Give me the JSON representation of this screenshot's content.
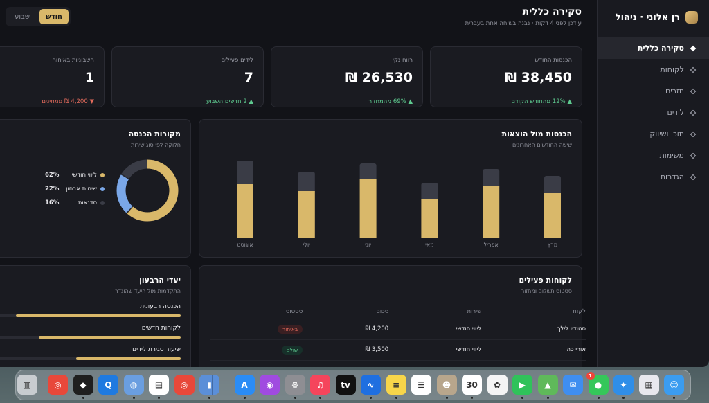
{
  "sidebar": {
    "brand": "רן אלוני · ניהול",
    "items": [
      {
        "label": "סקירה כללית",
        "active": true
      },
      {
        "label": "לקוחות"
      },
      {
        "label": "תזרים"
      },
      {
        "label": "לידים"
      },
      {
        "label": "תוכן ושיווק"
      },
      {
        "label": "משימות"
      },
      {
        "label": "הגדרות"
      }
    ]
  },
  "header": {
    "title": "סקירה כללית",
    "subtitle": "עודכן לפני 4 דקות · נבנה בשיחה אחת בעברית",
    "toggle": [
      "שבוע",
      "חודש"
    ],
    "toggle_active": "חודש"
  },
  "kpis": [
    {
      "label": "הכנסות החודש",
      "value": "38,450 ₪",
      "delta": "▲ 12% מהחודש הקודם",
      "trend": "up"
    },
    {
      "label": "רווח נקי",
      "value": "26,530 ₪",
      "delta": "▲ 69% מהמחזור",
      "trend": "up"
    },
    {
      "label": "לידים פעילים",
      "value": "7",
      "delta": "▲ 2 חדשים השבוע",
      "trend": "up"
    },
    {
      "label": "חשבוניות באיחור",
      "value": "1",
      "delta": "▼ 4,200 ₪ ממתינים",
      "trend": "down"
    }
  ],
  "revenue_chart": {
    "title": "הכנסות מול הוצאות",
    "subtitle": "שישה החודשים האחרונים",
    "colors": {
      "income": "#d9b86a",
      "expense": "#3a3c46"
    }
  },
  "chart_data": [
    {
      "type": "bar",
      "stacked": true,
      "categories": [
        "מרץ",
        "אפריל",
        "מאי",
        "יוני",
        "יולי",
        "אוגוסט"
      ],
      "series": [
        {
          "values": [
            64,
            74,
            55,
            85,
            67,
            77
          ]
        },
        {
          "values": [
            25,
            25,
            24,
            22,
            28,
            34
          ]
        }
      ],
      "ylim": [
        0,
        110
      ]
    },
    {
      "type": "pie",
      "donut": true,
      "categories": [
        "ליווי חודשי",
        "שיחות אבחון",
        "סדנאות"
      ],
      "values": [
        62,
        22,
        16
      ],
      "colors": [
        "#d9b86a",
        "#7aa7e8",
        "#3a3c46"
      ]
    }
  ],
  "sources": {
    "title": "מקורות הכנסה",
    "subtitle": "חלוקה לפי סוג שירות",
    "legend": [
      {
        "name": "ליווי חודשי",
        "pct": "62%",
        "color": "#d9b86a"
      },
      {
        "name": "שיחות אבחון",
        "pct": "22%",
        "color": "#7aa7e8"
      },
      {
        "name": "סדנאות",
        "pct": "16%",
        "color": "#3a3c46"
      }
    ]
  },
  "clients": {
    "title": "לקוחות פעילים",
    "subtitle": "סטטוס תשלום ומחזור",
    "columns": [
      "לקוח",
      "שירות",
      "סכום",
      "סטטוס"
    ],
    "rows": [
      {
        "name": "סטודיו לילך",
        "service": "ליווי חודשי",
        "amount": "4,200 ₪",
        "status": "באיחור",
        "status_kind": "late"
      },
      {
        "name": "אורי כהן",
        "service": "ליווי חודשי",
        "amount": "3,500 ₪",
        "status": "שולם",
        "status_kind": "paid"
      }
    ]
  },
  "goals": {
    "title": "יעדי הרבעון",
    "subtitle": "התקדמות מול היעד שהוגדר",
    "items": [
      {
        "label": "הכנסה רבעונית",
        "progress": 0.88
      },
      {
        "label": "לקוחות חדשים",
        "progress": 0.76
      },
      {
        "label": "שיעור סגירת לידים",
        "progress": 0.56
      }
    ]
  },
  "dock": {
    "items": [
      {
        "name": "finder-icon",
        "glyph": "☺",
        "color": "#3b9cf0"
      },
      {
        "name": "launchpad-icon",
        "glyph": "▦",
        "color": "#e8e8ee"
      },
      {
        "name": "safari-icon",
        "glyph": "✦",
        "color": "#2f8ee8"
      },
      {
        "name": "messages-icon",
        "glyph": "●",
        "color": "#35c75a",
        "badge": "1"
      },
      {
        "name": "mail-icon",
        "glyph": "✉",
        "color": "#3f8ef0"
      },
      {
        "name": "maps-icon",
        "glyph": "▲",
        "color": "#5fb95a"
      },
      {
        "name": "facetime-icon",
        "glyph": "▶",
        "color": "#30c25a"
      },
      {
        "name": "photos-icon",
        "glyph": "✿",
        "color": "#f4f4f4"
      },
      {
        "name": "calendar-icon",
        "glyph": "30",
        "color": "#ffffff"
      },
      {
        "name": "contacts-icon",
        "glyph": "☻",
        "color": "#b8a68c"
      },
      {
        "name": "reminders-icon",
        "glyph": "☰",
        "color": "#ffffff"
      },
      {
        "name": "notes-icon",
        "glyph": "≡",
        "color": "#f7d54a"
      },
      {
        "name": "freeform-icon",
        "glyph": "∿",
        "color": "#1f6fe0"
      },
      {
        "name": "tv-icon",
        "glyph": "tv",
        "color": "#111111"
      },
      {
        "name": "music-icon",
        "glyph": "♫",
        "color": "#f5455c"
      },
      {
        "name": "settings-icon",
        "glyph": "⚙",
        "color": "#8e8e93"
      },
      {
        "name": "podcasts-icon",
        "glyph": "◉",
        "color": "#a04be0"
      },
      {
        "name": "appstore-icon",
        "glyph": "A",
        "color": "#2a8cf5"
      },
      {
        "name": "files-icon",
        "glyph": "▮",
        "color": "#5b8fd8"
      },
      {
        "name": "chrome-icon",
        "glyph": "◎",
        "color": "#e8483a"
      },
      {
        "name": "textedit-icon",
        "glyph": "▤",
        "color": "#ffffff"
      },
      {
        "name": "app-icon",
        "glyph": "◍",
        "color": "#6a9ee0"
      },
      {
        "name": "quicktime-icon",
        "glyph": "Q",
        "color": "#1f7ae0"
      },
      {
        "name": "perplexity-icon",
        "glyph": "◆",
        "color": "#1f1f1f"
      },
      {
        "name": "chrome-small-icon",
        "glyph": "◎",
        "color": "#e8483a"
      },
      {
        "name": "trash-icon",
        "glyph": "▥",
        "color": "#c8ccd0"
      }
    ]
  }
}
